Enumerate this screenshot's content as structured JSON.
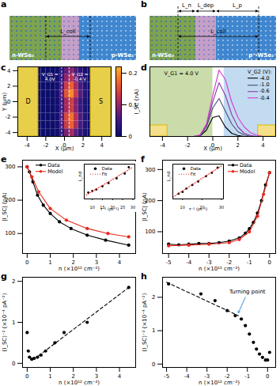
{
  "schematics": [
    {
      "panel": "a",
      "labels": [
        "n-WSe₂",
        "p-WSe₂"
      ],
      "arrows": [
        "L_coll"
      ]
    },
    {
      "panel": "b",
      "labels": [
        "n-WSe₂",
        "p⁺-WSe₂"
      ],
      "arrows": [
        "L_n",
        "L_dep",
        "L_p",
        "L_coll"
      ]
    }
  ],
  "chart_data": [
    {
      "panel": "c",
      "type": "heatmap",
      "x": [
        -4.75,
        -4.25,
        -3.75,
        -3.25,
        -2.75,
        -2.25,
        -1.75,
        -1.25,
        -0.75,
        -0.25,
        0.25,
        0.75,
        1.25,
        1.75,
        2.25,
        2.75,
        3.25,
        3.75,
        4.25,
        4.75
      ],
      "y": [
        -4,
        -3,
        -2,
        -1,
        0,
        1,
        2,
        3,
        4
      ],
      "z": [
        [
          0,
          0,
          0,
          0,
          0,
          0,
          0,
          0,
          0.007,
          0.035,
          0.084,
          0.105,
          0.07,
          0.035,
          0.014,
          0,
          0,
          0,
          0,
          0
        ],
        [
          0,
          0,
          0,
          0,
          0,
          0,
          0,
          0,
          0.011,
          0.055,
          0.132,
          0.165,
          0.11,
          0.055,
          0.022,
          0,
          0,
          0,
          0,
          0
        ],
        [
          0,
          0,
          0,
          0,
          0,
          0,
          0,
          0,
          0.012,
          0.06,
          0.144,
          0.18,
          0.12,
          0.06,
          0.024,
          0,
          0,
          0,
          0,
          0
        ],
        [
          0,
          0,
          0,
          0,
          0,
          0,
          0,
          0,
          0.009,
          0.045,
          0.108,
          0.135,
          0.09,
          0.045,
          0.018,
          0,
          0,
          0,
          0,
          0
        ],
        [
          0,
          0,
          0,
          0,
          0,
          0,
          0,
          0,
          0.009,
          0.045,
          0.108,
          0.135,
          0.09,
          0.045,
          0.018,
          0,
          0,
          0,
          0,
          0
        ],
        [
          0,
          0,
          0,
          0,
          0,
          0,
          0,
          0,
          0.013,
          0.065,
          0.156,
          0.195,
          0.13,
          0.065,
          0.026,
          0,
          0,
          0,
          0,
          0
        ],
        [
          0,
          0,
          0,
          0,
          0,
          0,
          0,
          0,
          0.011,
          0.055,
          0.132,
          0.165,
          0.11,
          0.055,
          0.022,
          0,
          0,
          0,
          0,
          0
        ],
        [
          0,
          0,
          0,
          0,
          0,
          0,
          0,
          0,
          0.008,
          0.04,
          0.096,
          0.12,
          0.08,
          0.04,
          0.016,
          0,
          0,
          0,
          0,
          0
        ],
        [
          0,
          0,
          0,
          0,
          0,
          0,
          0,
          0,
          0.006,
          0.03,
          0.072,
          0.09,
          0.06,
          0.03,
          0.012,
          0,
          0,
          0,
          0,
          0
        ]
      ],
      "xlim": [
        -5,
        5
      ],
      "ylim": [
        -4.5,
        4.5
      ],
      "xticks": [
        -4,
        -2,
        0,
        2,
        4
      ],
      "yticks": [
        -4,
        -2,
        0,
        2,
        4
      ],
      "x_label": "X (µm)",
      "y_label": "Y (µm)",
      "colorbar_label": "I_SC (nA)",
      "colorbar_range": [
        0,
        0.22
      ],
      "colorbar_ticks": [
        0,
        0.1,
        0.2
      ],
      "regions": [
        {
          "label": "D",
          "x": [
            -5,
            -2.8
          ]
        },
        {
          "label": "S",
          "x": [
            2.8,
            5
          ]
        }
      ],
      "boundaries": [
        -0.3,
        0.5
      ],
      "annotations": [
        {
          "text": "V_G1 = 4.0V",
          "x": -1.55,
          "y": 3.2
        },
        {
          "text": "V_G2 = -0.4 V",
          "x": 1.65,
          "y": 3.2
        }
      ]
    },
    {
      "panel": "d",
      "type": "line",
      "x": [
        -5,
        -4.5,
        -4,
        -3.5,
        -3,
        -2.5,
        -2,
        -1.5,
        -1,
        -0.5,
        0,
        0.5,
        1,
        1.5,
        2,
        2.5,
        3,
        3.5,
        4,
        4.5,
        5
      ],
      "series": [
        {
          "name": "-4.0",
          "color": "#000000",
          "values": [
            0,
            0,
            0,
            0,
            0,
            0,
            0,
            0,
            0.002,
            0.02,
            0.06,
            0.065,
            0.03,
            0.01,
            0.003,
            0,
            0,
            0,
            0,
            0,
            0
          ]
        },
        {
          "name": "-1.0",
          "color": "#4a4a78",
          "values": [
            0,
            0,
            0,
            0,
            0,
            0,
            0,
            0,
            0.003,
            0.03,
            0.09,
            0.12,
            0.08,
            0.04,
            0.015,
            0.005,
            0,
            0,
            0,
            0,
            0
          ]
        },
        {
          "name": "-0.6",
          "color": "#8a3aa8",
          "values": [
            0,
            0,
            0,
            0,
            0,
            0,
            0,
            0,
            0.004,
            0.035,
            0.11,
            0.17,
            0.13,
            0.07,
            0.03,
            0.01,
            0.003,
            0,
            0,
            0,
            0
          ]
        },
        {
          "name": "-0.4",
          "color": "#d63ad6",
          "values": [
            0,
            0,
            0,
            0,
            0,
            0,
            0,
            0,
            0.005,
            0.04,
            0.13,
            0.21,
            0.18,
            0.11,
            0.06,
            0.03,
            0.012,
            0.004,
            0,
            0,
            0
          ]
        }
      ],
      "xlim": [
        -5,
        5
      ],
      "ylim": [
        0,
        0.22
      ],
      "xticks": [
        -4,
        -2,
        0,
        2,
        4
      ],
      "x_label": "X (µm)",
      "tick_labels": "x",
      "legend": "top-right",
      "legend_title": "V_G2 (V):",
      "regions": [
        {
          "x": [
            -5,
            0
          ],
          "color": "#c9dcaa"
        },
        {
          "x": [
            0.9,
            5
          ],
          "color": "#c2dbf1"
        }
      ],
      "electrodes": [
        {
          "x": [
            -5,
            -3.6
          ],
          "y": [
            0,
            0.035
          ]
        },
        {
          "x": [
            3.6,
            5
          ],
          "y": [
            0,
            0.035
          ]
        }
      ],
      "annotations": [
        {
          "text": "V_G1 = 4.0 V",
          "x": -2.5,
          "y": 0.2
        }
      ]
    },
    {
      "panel": "e",
      "type": "line",
      "series": [
        {
          "name": "Data",
          "color": "#000000",
          "marker": "circle",
          "x": [
            0,
            0.1,
            0.25,
            0.45,
            0.7,
            1.0,
            1.4,
            1.9,
            2.6,
            3.4,
            4.4
          ],
          "values": [
            300,
            285,
            255,
            215,
            185,
            160,
            135,
            115,
            95,
            80,
            65
          ]
        },
        {
          "name": "Model",
          "color": "#e8281e",
          "marker": "circle",
          "x": [
            0,
            0.2,
            0.5,
            1.0,
            1.7,
            2.6,
            3.5,
            4.4
          ],
          "values": [
            300,
            270,
            225,
            175,
            140,
            115,
            100,
            90
          ]
        }
      ],
      "xlim": [
        -0.2,
        4.7
      ],
      "ylim": [
        40,
        320
      ],
      "xticks": [
        0,
        1,
        2,
        3,
        4
      ],
      "yticks": [
        100,
        200,
        300
      ],
      "x_label": "n (×10¹² cm⁻²)",
      "y_label": "|I_SC| (pA)",
      "legend": "top-left"
    },
    {
      "inset_of": "e",
      "type": "scatter",
      "series": [
        {
          "name": "Data",
          "color": "#000000",
          "marker": "circle",
          "x": [
            8,
            10,
            12,
            15,
            18,
            22,
            26,
            28
          ],
          "values": [
            0.2,
            0.25,
            0.3,
            0.4,
            0.5,
            0.65,
            0.8,
            1.0
          ]
        },
        {
          "name": "Fit",
          "color": "#e8281e",
          "line_style": "dotted",
          "x": [
            7,
            30
          ],
          "values": [
            0.12,
            1.0
          ]
        }
      ],
      "xlim": [
        6,
        31
      ],
      "ylim": [
        0,
        1.1
      ],
      "xticks": [
        10,
        15,
        20,
        25,
        30
      ],
      "x_label": "τ⁻¹ (ps⁻¹)",
      "y_label": "L_nd",
      "tick_labels": "x",
      "legend": "top-left"
    },
    {
      "panel": "f",
      "type": "line",
      "series": [
        {
          "name": "Data",
          "color": "#000000",
          "marker": "circle",
          "x": [
            -5,
            -4.5,
            -4,
            -3.5,
            -3,
            -2.5,
            -2,
            -1.5,
            -1.2,
            -1,
            -0.8,
            -0.6,
            -0.4,
            -0.2,
            0
          ],
          "values": [
            60,
            58,
            60,
            62,
            62,
            65,
            70,
            80,
            95,
            110,
            130,
            160,
            200,
            250,
            290
          ]
        },
        {
          "name": "Model",
          "color": "#e8281e",
          "marker": "circle",
          "x": [
            -5,
            -4,
            -3,
            -2,
            -1.5,
            -1,
            -0.6,
            -0.3,
            0
          ],
          "values": [
            55,
            57,
            60,
            65,
            75,
            100,
            150,
            220,
            290
          ]
        }
      ],
      "xlim": [
        -5.3,
        0.3
      ],
      "ylim": [
        30,
        330
      ],
      "xticks": [
        -5,
        -4,
        -3,
        -2,
        -1,
        0
      ],
      "yticks": [
        100,
        200,
        300
      ],
      "x_label": "n (×10¹² cm⁻²)",
      "y_label": "|I_SC| (pA)",
      "legend": "top"
    },
    {
      "inset_of": "f",
      "type": "scatter",
      "series": [
        {
          "name": "Data",
          "color": "#000000",
          "marker": "circle",
          "x": [
            8,
            10,
            12,
            15,
            18,
            22,
            25,
            28
          ],
          "values": [
            0.15,
            0.2,
            0.3,
            0.4,
            0.5,
            0.65,
            0.75,
            0.9
          ]
        },
        {
          "name": "Fit",
          "color": "#e8281e",
          "line_style": "dotted",
          "x": [
            5,
            30
          ],
          "values": [
            0.05,
            0.95
          ]
        }
      ],
      "xlim": [
        5,
        31
      ],
      "ylim": [
        0,
        1.0
      ],
      "xticks": [
        10,
        20,
        30
      ],
      "x_label": "τ⁻¹ (ps⁻¹)",
      "y_label": "L_nd",
      "tick_labels": "x",
      "legend": "top-left"
    },
    {
      "panel": "g",
      "type": "scatter",
      "series": [
        {
          "color": "#000000",
          "marker": "circle",
          "x": [
            0,
            0.05,
            0.1,
            0.2,
            0.3,
            0.45,
            0.6,
            0.8,
            1.2,
            1.6,
            2.6,
            4.4
          ],
          "values": [
            0.75,
            0.3,
            0.15,
            0.1,
            0.12,
            0.15,
            0.2,
            0.3,
            0.5,
            0.75,
            1.0,
            1.85
          ]
        },
        {
          "color": "#000000",
          "line_style": "dashed",
          "x": [
            0.3,
            4.4
          ],
          "values": [
            0.1,
            1.85
          ]
        }
      ],
      "xlim": [
        -0.2,
        4.7
      ],
      "ylim": [
        -0.1,
        2.1
      ],
      "xticks": [
        0,
        1,
        2,
        3,
        4
      ],
      "yticks": [
        0,
        1,
        2
      ],
      "x_label": "n (×10¹² cm⁻²)",
      "y_label": "(I_SC)⁻² (×10⁻⁴ pA⁻²)"
    },
    {
      "panel": "h",
      "type": "scatter",
      "series": [
        {
          "color": "#000000",
          "marker": "circle",
          "x": [
            -4.9,
            -3.3,
            -2.6,
            -2.0,
            -1.6,
            -1.3,
            -1.1,
            -0.9,
            -0.7,
            -0.55,
            -0.4,
            -0.25,
            -0.1,
            0,
            0.1
          ],
          "values": [
            2.4,
            2.1,
            1.9,
            1.6,
            1.45,
            1.35,
            1.15,
            0.9,
            0.65,
            0.45,
            0.3,
            0.2,
            0.12,
            0.12,
            0.35
          ]
        },
        {
          "color": "#000000",
          "line_style": "dashed",
          "x": [
            -5,
            -1.45
          ],
          "values": [
            2.45,
            1.45
          ]
        }
      ],
      "xlim": [
        -5.2,
        0.4
      ],
      "ylim": [
        -0.1,
        2.6
      ],
      "xticks": [
        -5,
        -4,
        -3,
        -2,
        -1,
        0
      ],
      "yticks": [
        0,
        1,
        2
      ],
      "x_label": "n (×10¹² cm⁻²)",
      "y_label": "(I_SC)⁻² (×10⁻⁴ pA⁻²)",
      "annotations": [
        {
          "text": "Turning point",
          "x": -1.45,
          "y": 1.45
        }
      ]
    }
  ]
}
